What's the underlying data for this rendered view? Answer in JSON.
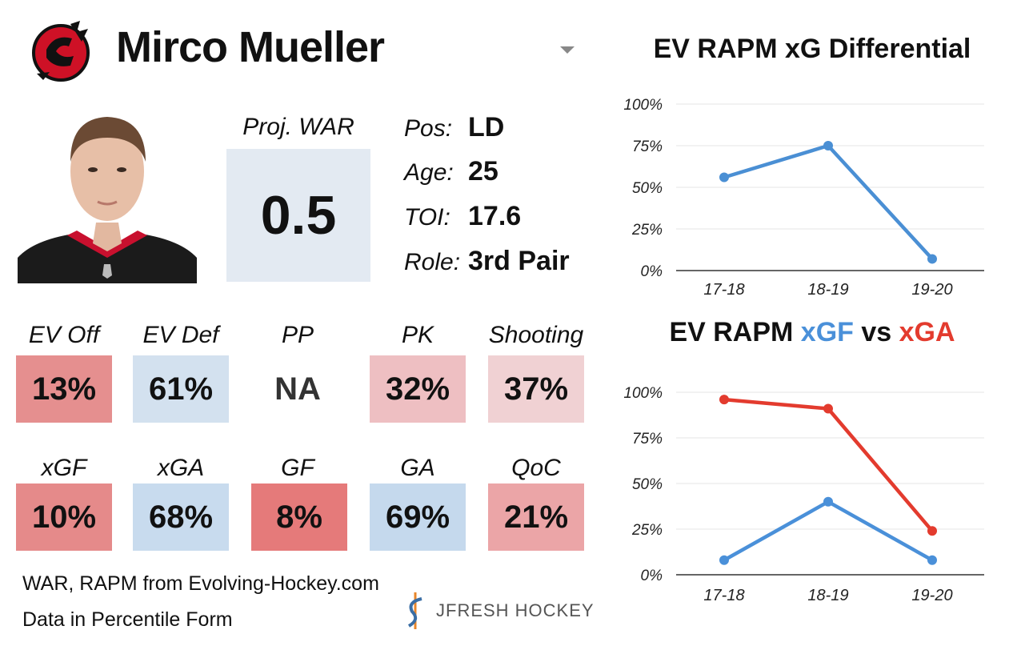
{
  "header": {
    "player_name": "Mirco Mueller"
  },
  "colors": {
    "team_red": "#ce1126",
    "xgf_blue": "#4a90d9",
    "xga_red": "#e33b2e",
    "line_blue": "#4a8fd4"
  },
  "war": {
    "label": "Proj. WAR",
    "value": "0.5"
  },
  "info": [
    {
      "key": "Pos:",
      "value": "LD"
    },
    {
      "key": "Age:",
      "value": "25"
    },
    {
      "key": "TOI:",
      "value": "17.6"
    },
    {
      "key": "Role:",
      "value": "3rd Pair"
    }
  ],
  "stats_row1": [
    {
      "label": "EV Off",
      "value": "13%",
      "color": "#e58f8f"
    },
    {
      "label": "EV Def",
      "value": "61%",
      "color": "#d3e1ef"
    },
    {
      "label": "PP",
      "value": "NA",
      "color": "#ffffff"
    },
    {
      "label": "PK",
      "value": "32%",
      "color": "#eebfc2"
    },
    {
      "label": "Shooting",
      "value": "37%",
      "color": "#f0d1d3"
    }
  ],
  "stats_row2": [
    {
      "label": "xGF",
      "value": "10%",
      "color": "#e58a8a"
    },
    {
      "label": "xGA",
      "value": "68%",
      "color": "#c8dbee"
    },
    {
      "label": "GF",
      "value": "8%",
      "color": "#e57a7a"
    },
    {
      "label": "GA",
      "value": "69%",
      "color": "#c5d9ed"
    },
    {
      "label": "QoC",
      "value": "21%",
      "color": "#eba5a7"
    }
  ],
  "footer": {
    "source_line": "WAR, RAPM from  Evolving-Hockey.com",
    "form_line": "Data in Percentile Form",
    "brand": "JFRESH HOCKEY"
  },
  "chart_titles": {
    "xgd": "EV RAPM xG Differential",
    "xgf_part1": "EV RAPM ",
    "xgf_part2": "xGF",
    "xgf_part3": " vs ",
    "xgf_part4": "xGA"
  },
  "chart_data": [
    {
      "type": "line",
      "title": "EV RAPM xG Differential",
      "categories": [
        "17-18",
        "18-19",
        "19-20"
      ],
      "series": [
        {
          "values": [
            56,
            75,
            7
          ]
        }
      ],
      "ylim": [
        0,
        100
      ],
      "yticks": [
        "0%",
        "25%",
        "50%",
        "75%",
        "100%"
      ],
      "grid": true
    },
    {
      "type": "line",
      "title": "EV RAPM xGF vs xGA",
      "categories": [
        "17-18",
        "18-19",
        "19-20"
      ],
      "series": [
        {
          "name": "xGF",
          "values": [
            8,
            40,
            8
          ]
        },
        {
          "name": "xGA",
          "values": [
            96,
            91,
            24
          ]
        }
      ],
      "ylim": [
        0,
        100
      ],
      "yticks": [
        "0%",
        "25%",
        "50%",
        "75%",
        "100%"
      ],
      "grid": true
    }
  ]
}
